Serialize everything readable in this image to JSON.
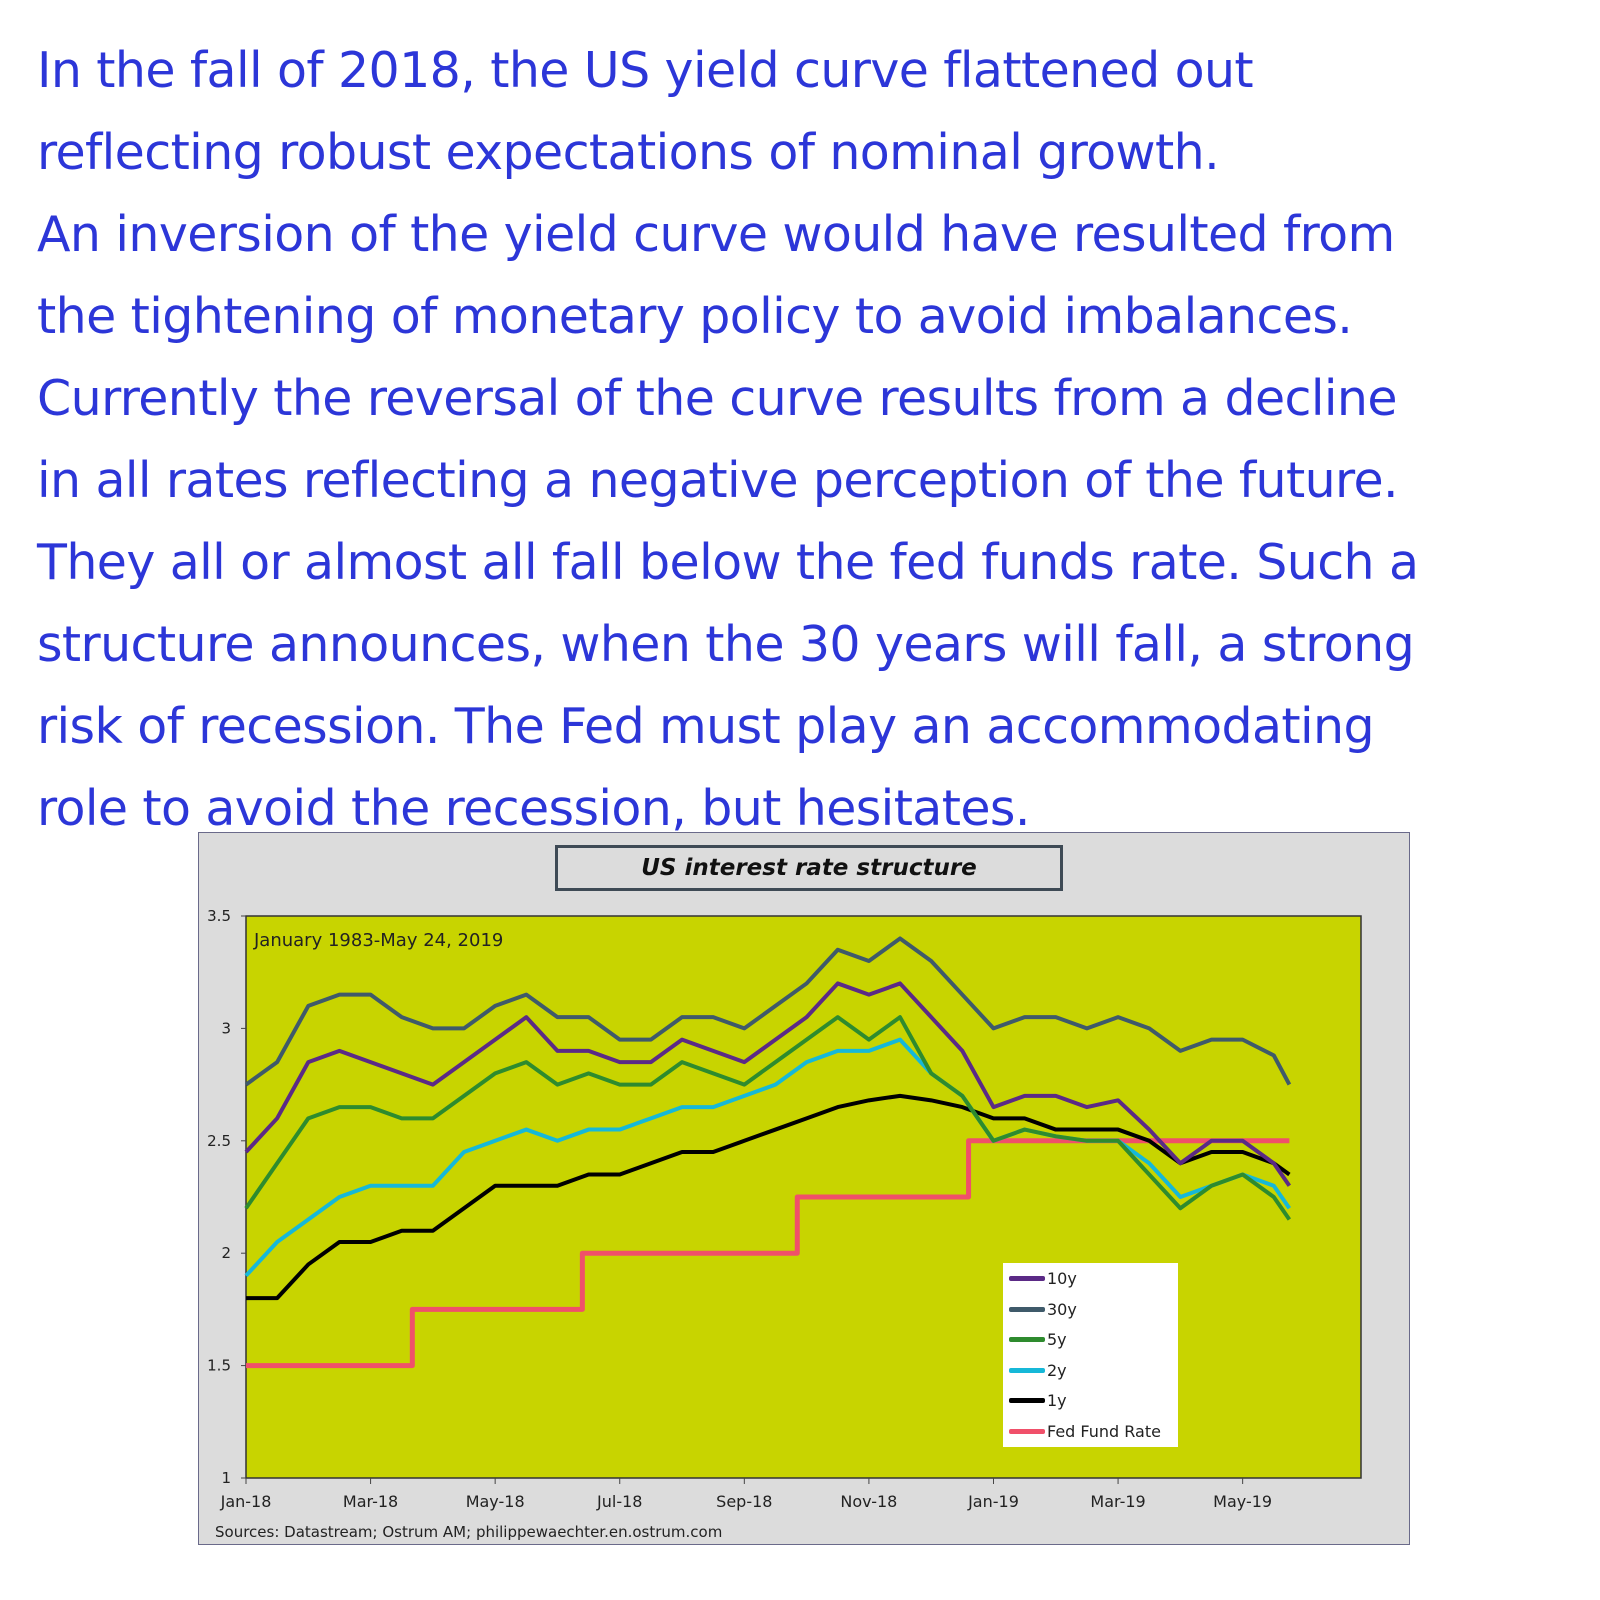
{
  "paragraph": [
    "In the fall of 2018, the US yield curve flattened out",
    "reflecting robust expectations of nominal growth.",
    "An inversion of the yield curve would have resulted from",
    "the tightening of monetary policy to avoid imbalances.",
    "Currently the reversal of the curve results from a decline",
    "in all rates reflecting a negative perception of the future.",
    "They all or almost all fall below the fed funds rate.  Such a",
    "structure announces, when the 30 years will fall, a strong",
    "risk of recession.  The Fed must play an accommodating",
    "role to avoid the recession, but hesitates."
  ],
  "chart_data": {
    "type": "line",
    "title": "US interest rate structure",
    "annotation": "January 1983-May 24, 2019",
    "source": "Sources: Datastream;  Ostrum AM; philippewaechter.en.ostrum.com",
    "xlabel": "",
    "ylabel": "",
    "x_unit": "months since Jan-2018",
    "xlim": [
      0,
      17.9
    ],
    "ylim": [
      1,
      3.5
    ],
    "y_ticks": [
      "1",
      "1.5",
      "2",
      "2.5",
      "3",
      "3.5"
    ],
    "x_ticks": [
      {
        "label": "Jan-18",
        "x": 0
      },
      {
        "label": "Mar-18",
        "x": 2
      },
      {
        "label": "May-18",
        "x": 4
      },
      {
        "label": "Jul-18",
        "x": 6
      },
      {
        "label": "Sep-18",
        "x": 8
      },
      {
        "label": "Nov-18",
        "x": 10
      },
      {
        "label": "Jan-19",
        "x": 12
      },
      {
        "label": "Mar-19",
        "x": 14
      },
      {
        "label": "May-19",
        "x": 16
      }
    ],
    "legend_placement": "bottom-right",
    "x": [
      0,
      0.5,
      1,
      1.5,
      2,
      2.5,
      3,
      3.5,
      4,
      4.5,
      5,
      5.5,
      6,
      6.5,
      7,
      7.5,
      8,
      8.5,
      9,
      9.5,
      10,
      10.5,
      11,
      11.5,
      12,
      12.5,
      13,
      13.5,
      14,
      14.5,
      15,
      15.5,
      16,
      16.5,
      16.75
    ],
    "series": [
      {
        "name": "10y",
        "color": "#5b2a86",
        "values": [
          2.45,
          2.6,
          2.85,
          2.9,
          2.85,
          2.8,
          2.75,
          2.85,
          2.95,
          3.05,
          2.9,
          2.9,
          2.85,
          2.85,
          2.95,
          2.9,
          2.85,
          2.95,
          3.05,
          3.2,
          3.15,
          3.2,
          3.05,
          2.9,
          2.65,
          2.7,
          2.7,
          2.65,
          2.68,
          2.55,
          2.4,
          2.5,
          2.5,
          2.4,
          2.3
        ]
      },
      {
        "name": "30y",
        "color": "#3f5a6a",
        "values": [
          2.75,
          2.85,
          3.1,
          3.15,
          3.15,
          3.05,
          3.0,
          3.0,
          3.1,
          3.15,
          3.05,
          3.05,
          2.95,
          2.95,
          3.05,
          3.05,
          3.0,
          3.1,
          3.2,
          3.35,
          3.3,
          3.4,
          3.3,
          3.15,
          3.0,
          3.05,
          3.05,
          3.0,
          3.05,
          3.0,
          2.9,
          2.95,
          2.95,
          2.88,
          2.75
        ]
      },
      {
        "name": "5y",
        "color": "#2e8b2e",
        "values": [
          2.2,
          2.4,
          2.6,
          2.65,
          2.65,
          2.6,
          2.6,
          2.7,
          2.8,
          2.85,
          2.75,
          2.8,
          2.75,
          2.75,
          2.85,
          2.8,
          2.75,
          2.85,
          2.95,
          3.05,
          2.95,
          3.05,
          2.8,
          2.7,
          2.5,
          2.55,
          2.52,
          2.5,
          2.5,
          2.35,
          2.2,
          2.3,
          2.35,
          2.25,
          2.15
        ]
      },
      {
        "name": "2y",
        "color": "#16b8d8",
        "values": [
          1.9,
          2.05,
          2.15,
          2.25,
          2.3,
          2.3,
          2.3,
          2.45,
          2.5,
          2.55,
          2.5,
          2.55,
          2.55,
          2.6,
          2.65,
          2.65,
          2.7,
          2.75,
          2.85,
          2.9,
          2.9,
          2.95,
          2.8,
          2.7,
          2.5,
          2.55,
          2.52,
          2.5,
          2.5,
          2.4,
          2.25,
          2.3,
          2.35,
          2.3,
          2.2
        ]
      },
      {
        "name": "1y",
        "color": "#000000",
        "values": [
          1.8,
          1.8,
          1.95,
          2.05,
          2.05,
          2.1,
          2.1,
          2.2,
          2.3,
          2.3,
          2.3,
          2.35,
          2.35,
          2.4,
          2.45,
          2.45,
          2.5,
          2.55,
          2.6,
          2.65,
          2.68,
          2.7,
          2.68,
          2.65,
          2.6,
          2.6,
          2.55,
          2.55,
          2.55,
          2.5,
          2.4,
          2.45,
          2.45,
          2.4,
          2.35
        ]
      },
      {
        "name": "Fed Fund Rate",
        "color": "#f0506a",
        "step": true,
        "points": [
          [
            0,
            1.5
          ],
          [
            2.67,
            1.5
          ],
          [
            2.67,
            1.75
          ],
          [
            5.4,
            1.75
          ],
          [
            5.4,
            2.0
          ],
          [
            8.85,
            2.0
          ],
          [
            8.85,
            2.25
          ],
          [
            11.6,
            2.25
          ],
          [
            11.6,
            2.5
          ],
          [
            16.75,
            2.5
          ]
        ]
      }
    ],
    "plot_background": "#c8d400",
    "grid": false
  }
}
